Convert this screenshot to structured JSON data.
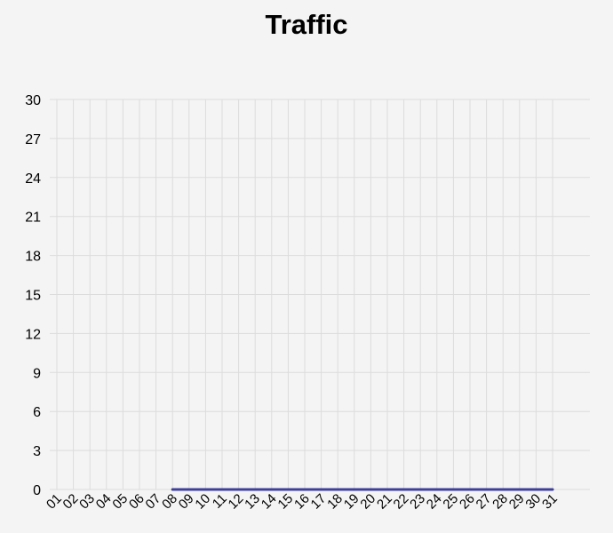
{
  "chart_data": {
    "type": "line",
    "title": "Traffic",
    "xlabel": "",
    "ylabel": "",
    "categories": [
      "01",
      "02",
      "03",
      "04",
      "05",
      "06",
      "07",
      "08",
      "09",
      "10",
      "11",
      "12",
      "13",
      "14",
      "15",
      "16",
      "17",
      "18",
      "19",
      "20",
      "21",
      "22",
      "23",
      "24",
      "25",
      "26",
      "27",
      "28",
      "29",
      "30",
      "31"
    ],
    "ylim": [
      0,
      30
    ],
    "y_ticks": [
      "0",
      "3",
      "6",
      "9",
      "12",
      "15",
      "18",
      "21",
      "24",
      "27",
      "30"
    ],
    "grid": true,
    "series": [
      {
        "name": "Traffic",
        "color": "#3f3f9a",
        "values": [
          null,
          null,
          null,
          null,
          null,
          null,
          null,
          0,
          0,
          0,
          0,
          0,
          0,
          0,
          0,
          0,
          0,
          0,
          0,
          0,
          0,
          0,
          0,
          0,
          0,
          0,
          0,
          0,
          0,
          0,
          0
        ]
      }
    ]
  }
}
